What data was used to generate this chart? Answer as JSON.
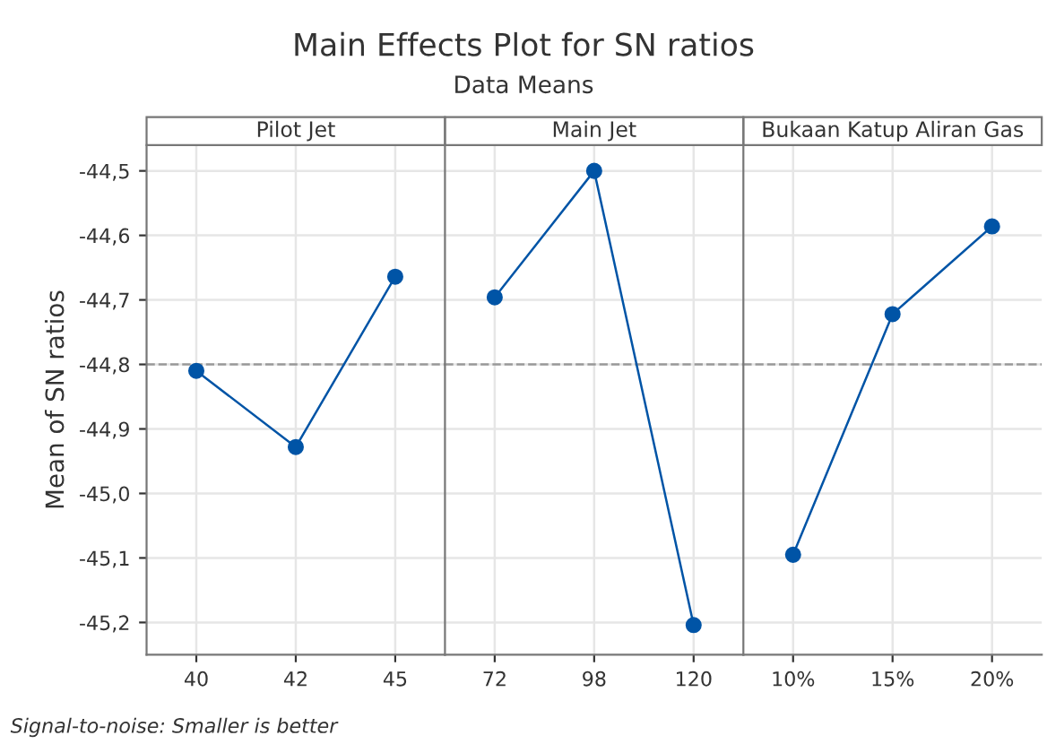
{
  "chart_data": [
    {
      "type": "other",
      "title": "Main Effects Plot for SN ratios",
      "subtitle": "Data Means",
      "annotations": [
        "Signal-to-noise: Smaller is better"
      ]
    },
    {
      "type": "line",
      "title": "Pilot Jet",
      "ylabel": "Mean of SN ratios",
      "categories": [
        "40",
        "42",
        "45"
      ],
      "series": [
        {
          "color": "#0054a6",
          "values": [
            -44.81,
            -44.928,
            -44.664
          ]
        }
      ],
      "ylim": [
        -45.25,
        -44.46
      ],
      "yticks": [
        {
          "value": -44.5,
          "label": "-44,5"
        },
        {
          "value": -44.6,
          "label": "-44,6"
        },
        {
          "value": -44.7,
          "label": "-44,7"
        },
        {
          "value": -44.8,
          "label": "-44,8"
        },
        {
          "value": -44.9,
          "label": "-44,9"
        },
        {
          "value": -45.0,
          "label": "-45,0"
        },
        {
          "value": -45.1,
          "label": "-45,1"
        },
        {
          "value": -45.2,
          "label": "-45,2"
        }
      ],
      "ref_lines": [
        {
          "axis": "y",
          "value": -44.8,
          "color": "#999999",
          "line_style": "dashed"
        }
      ],
      "grid": true,
      "marker": "circle",
      "line_style": "solid"
    },
    {
      "type": "line",
      "title": "Main Jet",
      "categories": [
        "72",
        "98",
        "120"
      ],
      "series": [
        {
          "color": "#0054a6",
          "values": [
            -44.696,
            -44.5,
            -45.204
          ]
        }
      ],
      "ylim": [
        -45.25,
        -44.46
      ],
      "yticks": [
        {
          "value": -44.5,
          "label": null
        },
        {
          "value": -44.6,
          "label": null
        },
        {
          "value": -44.7,
          "label": null
        },
        {
          "value": -44.8,
          "label": null
        },
        {
          "value": -44.9,
          "label": null
        },
        {
          "value": -45.0,
          "label": null
        },
        {
          "value": -45.1,
          "label": null
        },
        {
          "value": -45.2,
          "label": null
        }
      ],
      "tick_labels": "x",
      "ref_lines": [
        {
          "axis": "y",
          "value": -44.8,
          "color": "#999999",
          "line_style": "dashed"
        }
      ],
      "grid": true,
      "marker": "circle",
      "line_style": "solid"
    },
    {
      "type": "line",
      "title": "Bukaan Katup Aliran Gas",
      "categories": [
        "10%",
        "15%",
        "20%"
      ],
      "series": [
        {
          "color": "#0054a6",
          "values": [
            -45.095,
            -44.722,
            -44.586
          ]
        }
      ],
      "ylim": [
        -45.25,
        -44.46
      ],
      "yticks": [
        {
          "value": -44.5,
          "label": null
        },
        {
          "value": -44.6,
          "label": null
        },
        {
          "value": -44.7,
          "label": null
        },
        {
          "value": -44.8,
          "label": null
        },
        {
          "value": -44.9,
          "label": null
        },
        {
          "value": -45.0,
          "label": null
        },
        {
          "value": -45.1,
          "label": null
        },
        {
          "value": -45.2,
          "label": null
        }
      ],
      "tick_labels": "x",
      "ref_lines": [
        {
          "axis": "y",
          "value": -44.8,
          "color": "#999999",
          "line_style": "dashed"
        }
      ],
      "grid": true,
      "marker": "circle",
      "line_style": "solid"
    }
  ]
}
